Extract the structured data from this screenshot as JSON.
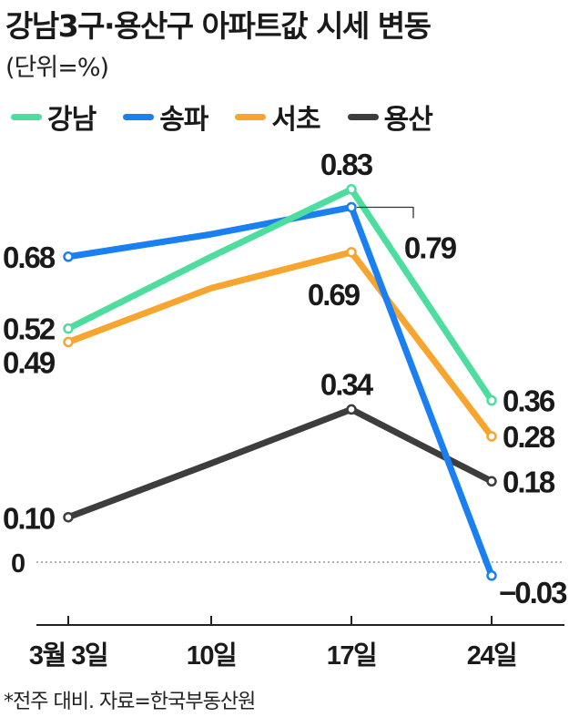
{
  "title": "강남3구·용산구 아파트값 시세 변동",
  "subtitle": "(단위=%)",
  "footnote": "*전주 대비. 자료=한국부동산원",
  "colors": {
    "강남": "#4ddd9e",
    "송파": "#1a7ff0",
    "서초": "#f8a530",
    "용산": "#3d3d3d",
    "axis": "#222222",
    "zero_line": "#999999"
  },
  "chart_data": {
    "type": "line",
    "title": "강남3구·용산구 아파트값 시세 변동",
    "unit": "(단위=%)",
    "categories": [
      "3월 3일",
      "10일",
      "17일",
      "24일"
    ],
    "ylim": [
      -0.1,
      0.9
    ],
    "zero_label": "0",
    "legend_position": "top-left",
    "grid": false,
    "series": [
      {
        "name": "강남",
        "values": [
          0.52,
          0.68,
          0.83,
          0.36
        ]
      },
      {
        "name": "송파",
        "values": [
          0.68,
          0.73,
          0.79,
          -0.03
        ]
      },
      {
        "name": "서초",
        "values": [
          0.49,
          0.61,
          0.69,
          0.28
        ]
      },
      {
        "name": "용산",
        "values": [
          0.1,
          0.22,
          0.34,
          0.18
        ]
      }
    ],
    "data_labels": [
      {
        "series": "송파",
        "index": 0,
        "text": "0.68"
      },
      {
        "series": "강남",
        "index": 0,
        "text": "0.52"
      },
      {
        "series": "서초",
        "index": 0,
        "text": "0.49"
      },
      {
        "series": "용산",
        "index": 0,
        "text": "0.10"
      },
      {
        "series": "강남",
        "index": 2,
        "text": "0.83"
      },
      {
        "series": "송파",
        "index": 2,
        "text": "0.79"
      },
      {
        "series": "서초",
        "index": 2,
        "text": "0.69"
      },
      {
        "series": "용산",
        "index": 2,
        "text": "0.34"
      },
      {
        "series": "강남",
        "index": 3,
        "text": "0.36"
      },
      {
        "series": "서초",
        "index": 3,
        "text": "0.28"
      },
      {
        "series": "용산",
        "index": 3,
        "text": "0.18"
      },
      {
        "series": "송파",
        "index": 3,
        "text": "−0.03"
      }
    ]
  }
}
